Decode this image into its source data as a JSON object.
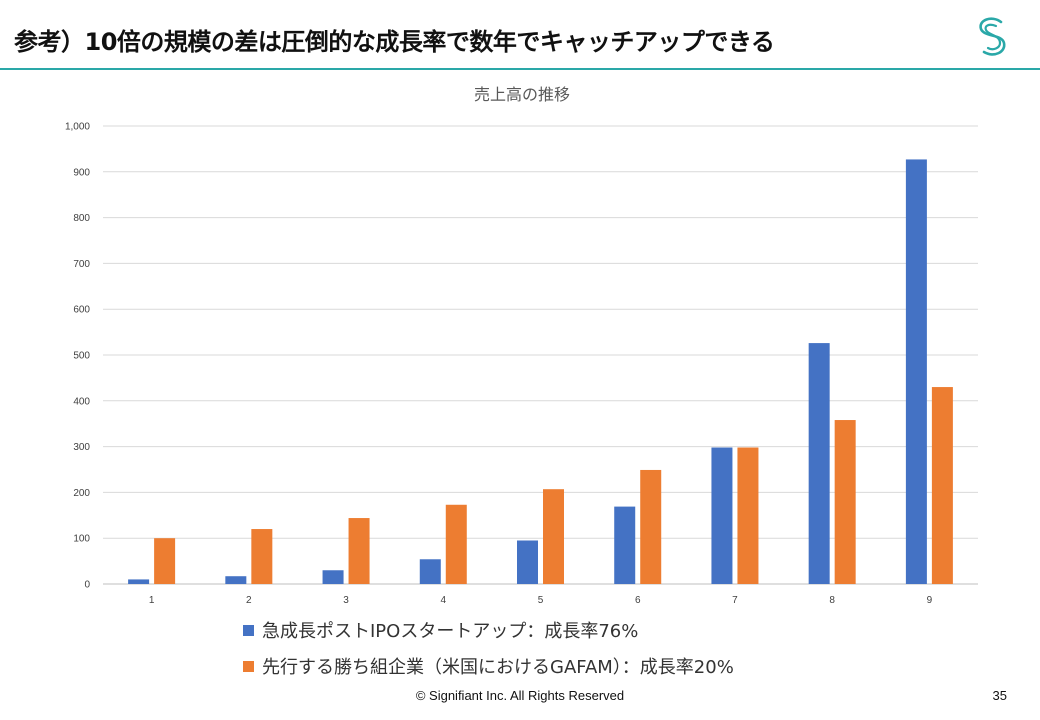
{
  "slide": {
    "title": "参考）10倍の規模の差は圧倒的な成長率で数年でキャッチアップできる",
    "logo": "signifiant-s-logo",
    "brand_color": "#2aa8a8"
  },
  "chart_data": {
    "type": "bar",
    "title": "売上高の推移",
    "categories": [
      "1",
      "2",
      "3",
      "4",
      "5",
      "6",
      "7",
      "8",
      "9"
    ],
    "series": [
      {
        "name": "急成長ポストIPOスタートアップ：成長率76%",
        "color": "#4472c4",
        "values": [
          10,
          17,
          30,
          54,
          95,
          169,
          298,
          526,
          927
        ]
      },
      {
        "name": "先行する勝ち組企業（米国におけるGAFAM）：成長率20%",
        "color": "#ed7d31",
        "values": [
          100,
          120,
          144,
          173,
          207,
          249,
          298,
          358,
          430
        ]
      }
    ],
    "y_ticks": [
      "0",
      "100",
      "200",
      "300",
      "400",
      "500",
      "600",
      "700",
      "800",
      "900",
      "1,000"
    ],
    "ylim": [
      0,
      1000
    ],
    "xlabel": "",
    "ylabel": "",
    "grid": true,
    "legend_position": "bottom"
  },
  "footer": {
    "copyright": "© Signifiant Inc. All Rights Reserved",
    "page_number": "35"
  }
}
